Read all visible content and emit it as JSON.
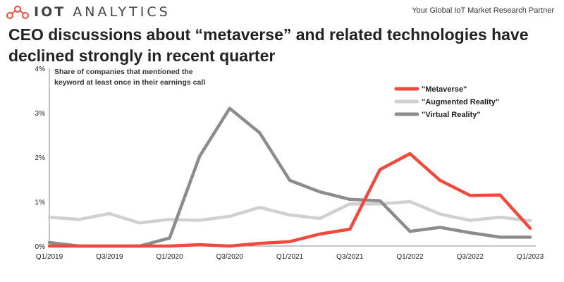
{
  "brand": {
    "name_bold": "IOT",
    "name_rest": "ANALYTICS",
    "tagline": "Your Global IoT Market Research Partner"
  },
  "title_lines": [
    "CEO discussions about “metaverse” and related technologies have",
    "declined strongly in recent quarter"
  ],
  "chart_data": {
    "type": "line",
    "subtitle_lines": [
      "Share of companies that mentioned the",
      "keyword at least once in their earnings call"
    ],
    "categories": [
      "Q1/2019",
      "Q2/2019",
      "Q3/2019",
      "Q4/2019",
      "Q1/2020",
      "Q2/2020",
      "Q3/2020",
      "Q4/2020",
      "Q1/2021",
      "Q2/2021",
      "Q3/2021",
      "Q4/2021",
      "Q1/2022",
      "Q2/2022",
      "Q3/2022",
      "Q4/2022",
      "Q1/2023"
    ],
    "xticklabels": [
      "Q1/2019",
      "Q3/2019",
      "Q1/2020",
      "Q3/2020",
      "Q1/2021",
      "Q3/2021",
      "Q1/2022",
      "Q3/2022",
      "Q1/2023"
    ],
    "yticks": [
      "0%",
      "1%",
      "2%",
      "3%",
      "4%"
    ],
    "ylim": [
      0,
      4
    ],
    "grid": false,
    "legend_position": "top-right",
    "series": [
      {
        "name": "\"Augmented Reality\"",
        "color": "#d0d0d0",
        "values": [
          0.65,
          0.6,
          0.73,
          0.52,
          0.6,
          0.58,
          0.67,
          0.87,
          0.7,
          0.62,
          0.95,
          0.95,
          1.0,
          0.72,
          0.58,
          0.65,
          0.57
        ]
      },
      {
        "name": "\"Virtual Reality\"",
        "color": "#8c8c8e",
        "values": [
          0.08,
          0.0,
          0.0,
          0.0,
          0.18,
          2.02,
          3.1,
          2.55,
          1.48,
          1.22,
          1.05,
          1.02,
          0.33,
          0.42,
          0.3,
          0.2,
          0.2
        ]
      },
      {
        "name": "\"Metaverse\"",
        "color": "#f04a3e",
        "values": [
          0.0,
          0.0,
          0.0,
          0.0,
          0.0,
          0.03,
          0.0,
          0.06,
          0.1,
          0.27,
          0.38,
          1.72,
          2.08,
          1.48,
          1.14,
          1.15,
          0.4
        ]
      }
    ],
    "legend_order": [
      2,
      0,
      1
    ]
  }
}
